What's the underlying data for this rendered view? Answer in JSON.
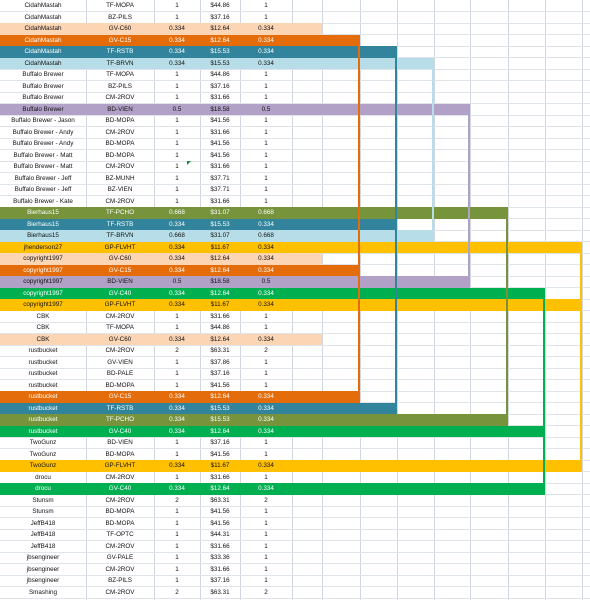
{
  "palette": {
    "peach": "#fcd5b5",
    "orange": "#e46c0a",
    "teal": "#31849b",
    "lightblue": "#b7dee8",
    "lavender": "#b2a1c7",
    "olive": "#77933c",
    "gold": "#ffc000",
    "green": "#00b050"
  },
  "rows": [
    {
      "user": "CidahMastah",
      "item": "TF-MOPA",
      "qty": "1",
      "price": "$44.86",
      "count": "1",
      "color": ""
    },
    {
      "user": "CidahMastah",
      "item": "BZ-PILS",
      "qty": "1",
      "price": "$37.16",
      "count": "1",
      "color": ""
    },
    {
      "user": "CidahMastah",
      "item": "GV-C60",
      "qty": "0.334",
      "price": "$12.64",
      "count": "0.334",
      "color": "peach"
    },
    {
      "user": "CidahMastah",
      "item": "GV-C15",
      "qty": "0.334",
      "price": "$12.64",
      "count": "0.334",
      "color": "orange"
    },
    {
      "user": "CidahMastah",
      "item": "TF-RSTB",
      "qty": "0.334",
      "price": "$15.53",
      "count": "0.334",
      "color": "teal"
    },
    {
      "user": "CidahMastah",
      "item": "TF-BRVN",
      "qty": "0.334",
      "price": "$15.53",
      "count": "0.334",
      "color": "lightblue"
    },
    {
      "user": "Buffalo Brewer",
      "item": "TF-MOPA",
      "qty": "1",
      "price": "$44.86",
      "count": "1",
      "color": ""
    },
    {
      "user": "Buffalo Brewer",
      "item": "BZ-PILS",
      "qty": "1",
      "price": "$37.16",
      "count": "1",
      "color": ""
    },
    {
      "user": "Buffalo Brewer",
      "item": "CM-2ROV",
      "qty": "1",
      "price": "$31.66",
      "count": "1",
      "color": ""
    },
    {
      "user": "Buffalo Brewer",
      "item": "BD-VIEN",
      "qty": "0.5",
      "price": "$18.58",
      "count": "0.5",
      "color": "lavender"
    },
    {
      "user": "Buffalo Brewer - Jason",
      "item": "BD-MOPA",
      "qty": "1",
      "price": "$41.56",
      "count": "1",
      "color": ""
    },
    {
      "user": "Buffalo Brewer - Andy",
      "item": "CM-2ROV",
      "qty": "1",
      "price": "$31.66",
      "count": "1",
      "color": ""
    },
    {
      "user": "Buffalo Brewer - Andy",
      "item": "BD-MOPA",
      "qty": "1",
      "price": "$41.56",
      "count": "1",
      "color": ""
    },
    {
      "user": "Buffalo Brewer - Matt",
      "item": "BD-MOPA",
      "qty": "1",
      "price": "$41.56",
      "count": "1",
      "color": ""
    },
    {
      "user": "Buffalo Brewer - Matt",
      "item": "CM-2ROV",
      "qty": "1",
      "price": "$31.66",
      "count": "1",
      "color": ""
    },
    {
      "user": "Buffalo Brewer - Jeff",
      "item": "BZ-MUNH",
      "qty": "1",
      "price": "$37.71",
      "count": "1",
      "color": ""
    },
    {
      "user": "Buffalo Brewer - Jeff",
      "item": "BZ-VIEN",
      "qty": "1",
      "price": "$37.71",
      "count": "1",
      "color": ""
    },
    {
      "user": "Buffalo Brewer - Kate",
      "item": "CM-2ROV",
      "qty": "1",
      "price": "$31.66",
      "count": "1",
      "color": ""
    },
    {
      "user": "Bierhaus15",
      "item": "TF-PCHO",
      "qty": "0.668",
      "price": "$31.07",
      "count": "0.668",
      "color": "olive"
    },
    {
      "user": "Bierhaus15",
      "item": "TF-RSTB",
      "qty": "0.334",
      "price": "$15.53",
      "count": "0.334",
      "color": "teal"
    },
    {
      "user": "Bierhaus15",
      "item": "TF-BRVN",
      "qty": "0.668",
      "price": "$31.07",
      "count": "0.668",
      "color": "lightblue"
    },
    {
      "user": "jhenderson27",
      "item": "GP-FLVHT",
      "qty": "0.334",
      "price": "$11.67",
      "count": "0.334",
      "color": "gold"
    },
    {
      "user": "copyright1997",
      "item": "GV-C60",
      "qty": "0.334",
      "price": "$12.64",
      "count": "0.334",
      "color": "peach"
    },
    {
      "user": "copyright1997",
      "item": "GV-C15",
      "qty": "0.334",
      "price": "$12.64",
      "count": "0.334",
      "color": "orange"
    },
    {
      "user": "copyright1997",
      "item": "BD-VIEN",
      "qty": "0.5",
      "price": "$18.58",
      "count": "0.5",
      "color": "lavender"
    },
    {
      "user": "copyright1997",
      "item": "GV-C40",
      "qty": "0.334",
      "price": "$12.64",
      "count": "0.334",
      "color": "green"
    },
    {
      "user": "copyright1997",
      "item": "GP-FLVHT",
      "qty": "0.334",
      "price": "$11.67",
      "count": "0.334",
      "color": "gold"
    },
    {
      "user": "CBK",
      "item": "CM-2ROV",
      "qty": "1",
      "price": "$31.66",
      "count": "1",
      "color": ""
    },
    {
      "user": "CBK",
      "item": "TF-MOPA",
      "qty": "1",
      "price": "$44.86",
      "count": "1",
      "color": ""
    },
    {
      "user": "CBK",
      "item": "GV-C60",
      "qty": "0.334",
      "price": "$12.64",
      "count": "0.334",
      "color": "peach"
    },
    {
      "user": "rustbucket",
      "item": "CM-2ROV",
      "qty": "2",
      "price": "$63.31",
      "count": "2",
      "color": ""
    },
    {
      "user": "rustbucket",
      "item": "GV-VIEN",
      "qty": "1",
      "price": "$37.86",
      "count": "1",
      "color": ""
    },
    {
      "user": "rustbucket",
      "item": "BD-PALE",
      "qty": "1",
      "price": "$37.16",
      "count": "1",
      "color": ""
    },
    {
      "user": "rustbucket",
      "item": "BD-MOPA",
      "qty": "1",
      "price": "$41.56",
      "count": "1",
      "color": ""
    },
    {
      "user": "rustbucket",
      "item": "GV-C15",
      "qty": "0.334",
      "price": "$12.64",
      "count": "0.334",
      "color": "orange"
    },
    {
      "user": "rustbucket",
      "item": "TF-RSTB",
      "qty": "0.334",
      "price": "$15.53",
      "count": "0.334",
      "color": "teal"
    },
    {
      "user": "rustbucket",
      "item": "TF-PCHO",
      "qty": "0.334",
      "price": "$15.53",
      "count": "0.334",
      "color": "olive"
    },
    {
      "user": "rustbucket",
      "item": "GV-C40",
      "qty": "0.334",
      "price": "$12.64",
      "count": "0.334",
      "color": "green"
    },
    {
      "user": "TwoGunz",
      "item": "BD-VIEN",
      "qty": "1",
      "price": "$37.16",
      "count": "1",
      "color": ""
    },
    {
      "user": "TwoGunz",
      "item": "BD-MOPA",
      "qty": "1",
      "price": "$41.56",
      "count": "1",
      "color": ""
    },
    {
      "user": "TwoGunz",
      "item": "GP-FLVHT",
      "qty": "0.334",
      "price": "$11.67",
      "count": "0.334",
      "color": "gold"
    },
    {
      "user": "drocu",
      "item": "CM-2ROV",
      "qty": "1",
      "price": "$31.66",
      "count": "1",
      "color": ""
    },
    {
      "user": "drocu",
      "item": "GV-C40",
      "qty": "0.334",
      "price": "$12.64",
      "count": "0.334",
      "color": "green"
    },
    {
      "user": "Stunsm",
      "item": "CM-2ROV",
      "qty": "2",
      "price": "$63.31",
      "count": "2",
      "color": ""
    },
    {
      "user": "Stunsm",
      "item": "BD-MOPA",
      "qty": "1",
      "price": "$41.56",
      "count": "1",
      "color": ""
    },
    {
      "user": "JeffB418",
      "item": "BD-MOPA",
      "qty": "1",
      "price": "$41.56",
      "count": "1",
      "color": ""
    },
    {
      "user": "JeffB418",
      "item": "TF-OPTC",
      "qty": "1",
      "price": "$44.31",
      "count": "1",
      "color": ""
    },
    {
      "user": "JeffB418",
      "item": "CM-2ROV",
      "qty": "1",
      "price": "$31.66",
      "count": "1",
      "color": ""
    },
    {
      "user": "jbsengineer",
      "item": "GV-PALE",
      "qty": "1",
      "price": "$33.36",
      "count": "1",
      "color": ""
    },
    {
      "user": "jbsengineer",
      "item": "CM-2ROV",
      "qty": "1",
      "price": "$31.66",
      "count": "1",
      "color": ""
    },
    {
      "user": "jbsengineer",
      "item": "BZ-PILS",
      "qty": "1",
      "price": "$37.16",
      "count": "1",
      "color": ""
    },
    {
      "user": "Smashing",
      "item": "CM-2ROV",
      "qty": "2",
      "price": "$63.31",
      "count": "2",
      "color": ""
    }
  ]
}
